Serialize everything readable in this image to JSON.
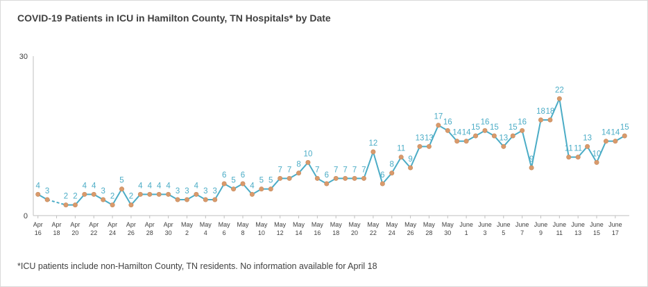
{
  "chart_data": {
    "type": "line",
    "title": "COVID-19  Patients in ICU in Hamilton County, TN Hospitals* by Date",
    "footnote": "*ICU patients include non-Hamilton County, TN residents. No information available for April 18",
    "ylim": [
      0,
      30
    ],
    "y_ticks": [
      "0",
      "30"
    ],
    "grid": false,
    "legend": "none",
    "line_color": "#4bacc6",
    "marker_color": "#d99a6c",
    "x_tick_labels": [
      [
        "Apr",
        "16"
      ],
      [
        "Apr",
        "18"
      ],
      [
        "Apr",
        "20"
      ],
      [
        "Apr",
        "22"
      ],
      [
        "Apr",
        "24"
      ],
      [
        "Apr",
        "26"
      ],
      [
        "Apr",
        "28"
      ],
      [
        "Apr",
        "30"
      ],
      [
        "May",
        "2"
      ],
      [
        "May",
        "4"
      ],
      [
        "May",
        "6"
      ],
      [
        "May",
        "8"
      ],
      [
        "May",
        "10"
      ],
      [
        "May",
        "12"
      ],
      [
        "May",
        "14"
      ],
      [
        "May",
        "16"
      ],
      [
        "May",
        "18"
      ],
      [
        "May",
        "20"
      ],
      [
        "May",
        "22"
      ],
      [
        "May",
        "24"
      ],
      [
        "May",
        "26"
      ],
      [
        "May",
        "28"
      ],
      [
        "May",
        "30"
      ],
      [
        "June",
        "1"
      ],
      [
        "June",
        "3"
      ],
      [
        "June",
        "5"
      ],
      [
        "June",
        "7"
      ],
      [
        "June",
        "9"
      ],
      [
        "June",
        "11"
      ],
      [
        "June",
        "13"
      ],
      [
        "June",
        "15"
      ],
      [
        "June",
        "17"
      ]
    ],
    "x_start": "2020-04-16",
    "x_end": "2020-06-18",
    "gap_dates": [
      "2020-04-18"
    ],
    "values": [
      4,
      3,
      null,
      2,
      2,
      4,
      4,
      3,
      2,
      5,
      2,
      4,
      4,
      4,
      4,
      3,
      3,
      4,
      3,
      3,
      6,
      5,
      6,
      4,
      5,
      5,
      7,
      7,
      8,
      10,
      7,
      6,
      7,
      7,
      7,
      7,
      12,
      6,
      8,
      11,
      9,
      13,
      13,
      17,
      16,
      14,
      14,
      15,
      16,
      15,
      13,
      15,
      16,
      9,
      18,
      18,
      22,
      11,
      11,
      13,
      10,
      14,
      14,
      15
    ]
  }
}
